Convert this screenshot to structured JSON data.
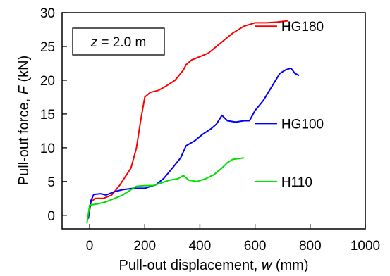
{
  "chart_data": {
    "type": "line",
    "title": "",
    "xlabel_prefix": "Pull-out displacement, ",
    "xlabel_var": "w",
    "xlabel_suffix": " (mm)",
    "ylabel_prefix": "Pull-out force, ",
    "ylabel_var": "F",
    "ylabel_suffix": " (kN)",
    "annotation": {
      "var": "z",
      "text": " = 2.0 m"
    },
    "xlim": [
      -100,
      1000
    ],
    "ylim": [
      -2,
      30
    ],
    "x_ticks": [
      0,
      200,
      400,
      600,
      800,
      1000
    ],
    "y_ticks": [
      0,
      5,
      10,
      15,
      20,
      25,
      30
    ],
    "legend_placement": "right",
    "grid": false,
    "series": [
      {
        "name": "HG180",
        "color": "#ff0000",
        "legend_y": 28,
        "points": [
          [
            -5,
            -0.5
          ],
          [
            5,
            2
          ],
          [
            20,
            2.5
          ],
          [
            50,
            2.5
          ],
          [
            80,
            3
          ],
          [
            110,
            4.5
          ],
          [
            150,
            7
          ],
          [
            170,
            10
          ],
          [
            185,
            14
          ],
          [
            200,
            17.5
          ],
          [
            220,
            18.2
          ],
          [
            250,
            18.5
          ],
          [
            280,
            19.2
          ],
          [
            310,
            20
          ],
          [
            340,
            21.5
          ],
          [
            350,
            22.3
          ],
          [
            370,
            23
          ],
          [
            400,
            23.5
          ],
          [
            430,
            24
          ],
          [
            460,
            25
          ],
          [
            490,
            26
          ],
          [
            520,
            27
          ],
          [
            560,
            28
          ],
          [
            600,
            28.5
          ],
          [
            640,
            28.5
          ],
          [
            680,
            28.6
          ],
          [
            700,
            28.7
          ],
          [
            720,
            28.8
          ]
        ]
      },
      {
        "name": "HG100",
        "color": "#0000ff",
        "legend_y": 13.6,
        "points": [
          [
            -5,
            -0.5
          ],
          [
            5,
            2.2
          ],
          [
            15,
            3.1
          ],
          [
            40,
            3.2
          ],
          [
            60,
            3.0
          ],
          [
            90,
            3.5
          ],
          [
            120,
            3.8
          ],
          [
            160,
            4
          ],
          [
            200,
            4
          ],
          [
            240,
            4.5
          ],
          [
            270,
            5.5
          ],
          [
            300,
            7
          ],
          [
            330,
            8.5
          ],
          [
            350,
            10.3
          ],
          [
            380,
            11
          ],
          [
            410,
            12
          ],
          [
            440,
            12.8
          ],
          [
            460,
            13.5
          ],
          [
            480,
            14.8
          ],
          [
            500,
            14
          ],
          [
            530,
            13.8
          ],
          [
            560,
            14
          ],
          [
            580,
            14
          ],
          [
            600,
            15.5
          ],
          [
            630,
            17
          ],
          [
            660,
            19
          ],
          [
            690,
            21
          ],
          [
            710,
            21.5
          ],
          [
            730,
            21.8
          ],
          [
            745,
            21
          ],
          [
            760,
            20.7
          ]
        ]
      },
      {
        "name": "H110",
        "color": "#00e000",
        "legend_y": 5,
        "points": [
          [
            -10,
            -1.2
          ],
          [
            0,
            1.5
          ],
          [
            30,
            1.7
          ],
          [
            60,
            2
          ],
          [
            90,
            2.5
          ],
          [
            120,
            3
          ],
          [
            150,
            3.8
          ],
          [
            170,
            4.3
          ],
          [
            200,
            4.4
          ],
          [
            230,
            4.4
          ],
          [
            260,
            4.8
          ],
          [
            290,
            5.2
          ],
          [
            320,
            5.4
          ],
          [
            340,
            5.9
          ],
          [
            360,
            5.2
          ],
          [
            390,
            5
          ],
          [
            420,
            5.4
          ],
          [
            450,
            6
          ],
          [
            480,
            7
          ],
          [
            500,
            7.8
          ],
          [
            520,
            8.3
          ],
          [
            540,
            8.4
          ],
          [
            560,
            8.5
          ]
        ]
      }
    ]
  }
}
